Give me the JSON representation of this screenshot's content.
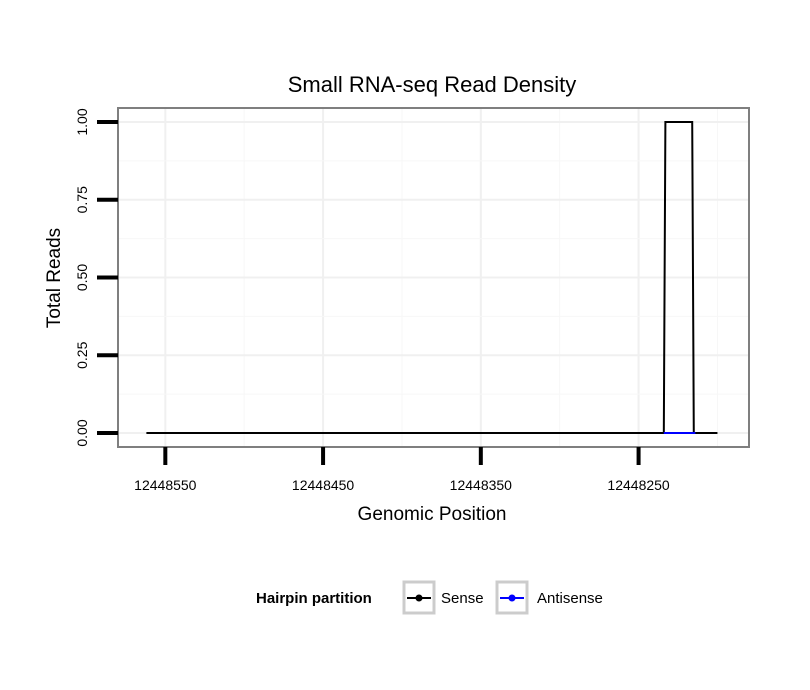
{
  "chart_data": {
    "type": "line",
    "title": "Small RNA-seq Read Density",
    "xlabel": "Genomic Position",
    "ylabel": "Total Reads",
    "x_reversed": true,
    "xlim": [
      12448580,
      12448180
    ],
    "ylim": [
      -0.045,
      1.045
    ],
    "x_ticks": [
      12448550,
      12448450,
      12448350,
      12448250
    ],
    "x_tick_labels": [
      "12448550",
      "12448450",
      "12448350",
      "12448250"
    ],
    "y_ticks": [
      0,
      0.25,
      0.5,
      0.75,
      1.0
    ],
    "y_tick_labels": [
      "0.00",
      "0.25",
      "0.50",
      "0.75",
      "1.00"
    ],
    "grid": true,
    "series": [
      {
        "name": "Sense",
        "color": "#000000",
        "x": [
          12448562,
          12448234,
          12448233,
          12448216,
          12448215,
          12448200
        ],
        "y": [
          0,
          0,
          1,
          1,
          0,
          0
        ]
      },
      {
        "name": "Antisense",
        "color": "#0000ff",
        "x": [
          12448234,
          12448214
        ],
        "y": [
          0,
          0
        ]
      }
    ],
    "legend": {
      "title": "Hairpin partition",
      "placement": "bottom",
      "entries": [
        "Sense",
        "Antisense"
      ]
    }
  }
}
